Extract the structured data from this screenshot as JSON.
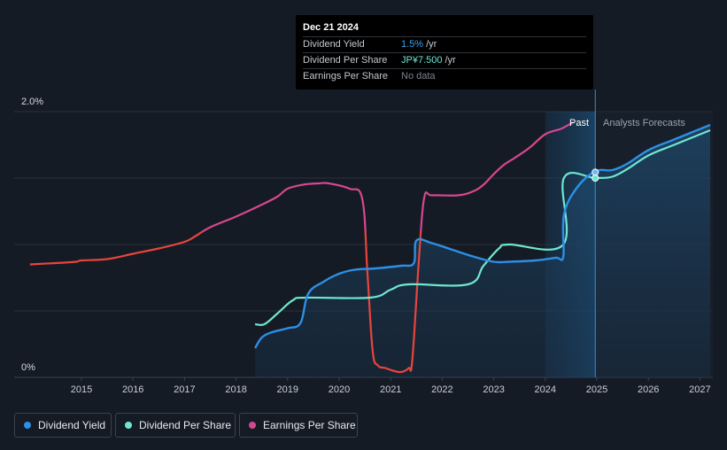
{
  "tooltip": {
    "date": "Dec 21 2024",
    "rows": [
      {
        "label": "Dividend Yield",
        "value": "1.5%",
        "unit": "/yr",
        "color": "#3aa0f0"
      },
      {
        "label": "Dividend Per Share",
        "value": "JP¥7.500",
        "unit": "/yr",
        "color": "#6ee7d0"
      },
      {
        "label": "Earnings Per Share",
        "value": "No data",
        "unit": "",
        "color": "#7d848e"
      }
    ]
  },
  "region_labels": {
    "past": "Past",
    "forecast": "Analysts Forecasts"
  },
  "legend": [
    {
      "label": "Dividend Yield",
      "color": "#2d8fe6"
    },
    {
      "label": "Dividend Per Share",
      "color": "#6ee7d0"
    },
    {
      "label": "Earnings Per Share",
      "color": "#d7478f"
    }
  ],
  "chart_data": {
    "type": "line",
    "x_ticks": [
      "2015",
      "2016",
      "2017",
      "2018",
      "2019",
      "2020",
      "2021",
      "2022",
      "2023",
      "2024",
      "2025",
      "2026",
      "2027"
    ],
    "y_tick_labels": [
      "0%",
      "2.0%"
    ],
    "y_axis": {
      "unit": "%",
      "range": [
        0,
        2.0
      ]
    },
    "past_forecast_boundary": 2024.97,
    "grid": true,
    "legend_position": "bottom-left",
    "colors": {
      "dividend_yield": "#2d8fe6",
      "dividend_per_share": "#6ee7d0",
      "eps_positive": "#d7478f",
      "eps_negative": "#e8453c"
    },
    "series": [
      {
        "key": "dividend_yield",
        "name": "Dividend Yield",
        "unit": "%",
        "points": [
          [
            2018.37,
            0.22
          ],
          [
            2018.5,
            0.3
          ],
          [
            2018.7,
            0.34
          ],
          [
            2019.0,
            0.37
          ],
          [
            2019.25,
            0.41
          ],
          [
            2019.4,
            0.63
          ],
          [
            2019.7,
            0.72
          ],
          [
            2020.0,
            0.78
          ],
          [
            2020.3,
            0.81
          ],
          [
            2020.7,
            0.82
          ],
          [
            2021.2,
            0.84
          ],
          [
            2021.45,
            0.86
          ],
          [
            2021.5,
            1.03
          ],
          [
            2021.8,
            1.01
          ],
          [
            2022.2,
            0.96
          ],
          [
            2022.6,
            0.91
          ],
          [
            2023.0,
            0.87
          ],
          [
            2023.3,
            0.87
          ],
          [
            2023.8,
            0.88
          ],
          [
            2024.2,
            0.9
          ],
          [
            2024.35,
            0.91
          ],
          [
            2024.36,
            1.22
          ],
          [
            2024.6,
            1.42
          ],
          [
            2024.97,
            1.55
          ],
          [
            2025.3,
            1.56
          ],
          [
            2025.6,
            1.61
          ],
          [
            2026.0,
            1.71
          ],
          [
            2026.5,
            1.79
          ],
          [
            2027.2,
            1.9
          ]
        ]
      },
      {
        "key": "dividend_per_share",
        "name": "Dividend Per Share",
        "unit": "JP¥",
        "points": [
          [
            2018.37,
            0.4
          ],
          [
            2018.55,
            0.4
          ],
          [
            2018.8,
            0.48
          ],
          [
            2019.1,
            0.58
          ],
          [
            2019.35,
            0.6
          ],
          [
            2020.6,
            0.6
          ],
          [
            2021.0,
            0.66
          ],
          [
            2021.35,
            0.7
          ],
          [
            2022.5,
            0.7
          ],
          [
            2022.8,
            0.84
          ],
          [
            2023.1,
            0.97
          ],
          [
            2023.3,
            1.0
          ],
          [
            2024.35,
            1.0
          ],
          [
            2024.36,
            1.5
          ],
          [
            2024.97,
            1.5
          ],
          [
            2025.3,
            1.51
          ],
          [
            2025.6,
            1.57
          ],
          [
            2026.0,
            1.67
          ],
          [
            2026.5,
            1.75
          ],
          [
            2027.2,
            1.86
          ]
        ]
      },
      {
        "key": "earnings_per_share",
        "name": "Earnings Per Share",
        "unit": "JP¥",
        "points": [
          [
            2014.0,
            0.85
          ],
          [
            2014.5,
            0.86
          ],
          [
            2014.9,
            0.87
          ],
          [
            2015.0,
            0.88
          ],
          [
            2015.5,
            0.89
          ],
          [
            2016.0,
            0.93
          ],
          [
            2016.5,
            0.97
          ],
          [
            2017.0,
            1.02
          ],
          [
            2017.2,
            1.06
          ],
          [
            2017.5,
            1.13
          ],
          [
            2018.0,
            1.21
          ],
          [
            2018.5,
            1.3
          ],
          [
            2018.8,
            1.36
          ],
          [
            2019.0,
            1.42
          ],
          [
            2019.3,
            1.45
          ],
          [
            2019.6,
            1.46
          ],
          [
            2019.8,
            1.46
          ],
          [
            2020.2,
            1.42
          ],
          [
            2020.45,
            1.34
          ],
          [
            2020.55,
            0.78
          ],
          [
            2020.65,
            0.2
          ],
          [
            2020.75,
            0.09
          ],
          [
            2020.9,
            0.07
          ],
          [
            2021.05,
            0.05
          ],
          [
            2021.2,
            0.04
          ],
          [
            2021.35,
            0.07
          ],
          [
            2021.42,
            0.13
          ],
          [
            2021.55,
            0.9
          ],
          [
            2021.65,
            1.35
          ],
          [
            2021.8,
            1.37
          ],
          [
            2022.3,
            1.37
          ],
          [
            2022.6,
            1.4
          ],
          [
            2022.8,
            1.45
          ],
          [
            2023.0,
            1.53
          ],
          [
            2023.2,
            1.6
          ],
          [
            2023.4,
            1.65
          ],
          [
            2023.7,
            1.73
          ],
          [
            2024.0,
            1.83
          ],
          [
            2024.3,
            1.87
          ],
          [
            2024.45,
            1.9
          ],
          [
            2024.55,
            1.92
          ]
        ]
      }
    ]
  }
}
